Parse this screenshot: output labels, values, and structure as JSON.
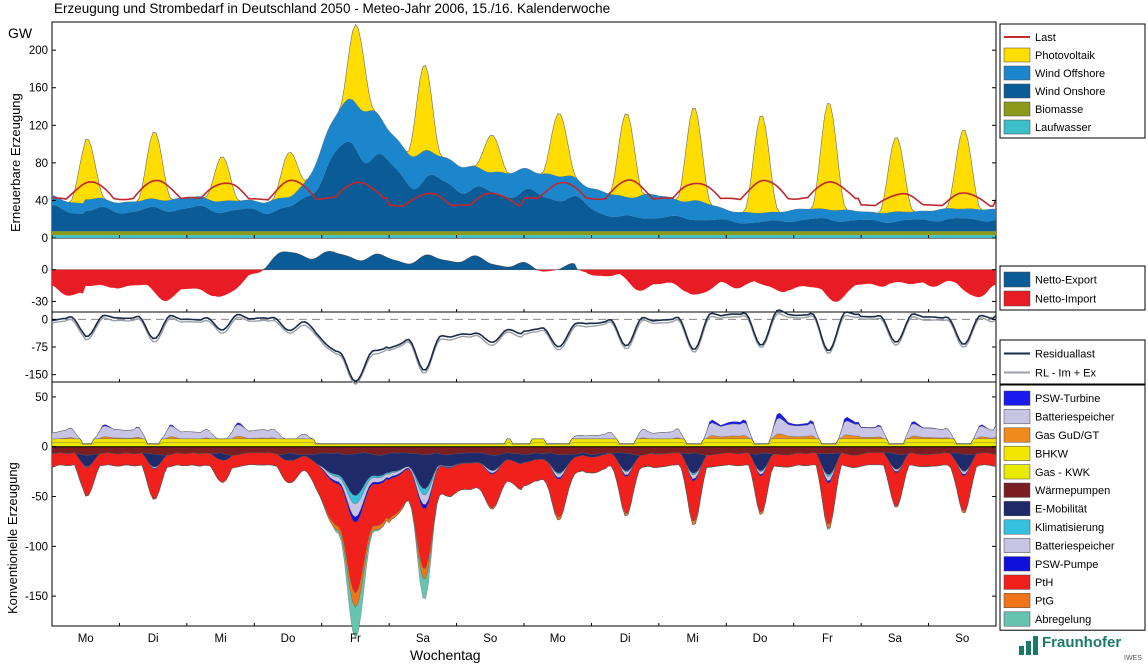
{
  "chart_data": {
    "type": "area",
    "title": "Erzeugung und Strombedarf in Deutschland 2050 - Meteo-Jahr 2006, 15./16. Kalenderwoche",
    "xlabel": "Wochentag",
    "x_ticks": [
      "Mo",
      "Di",
      "Mi",
      "Do",
      "Fr",
      "Sa",
      "So",
      "Mo",
      "Di",
      "Mi",
      "Do",
      "Fr",
      "Sa",
      "So"
    ],
    "x_unit": "hours",
    "x_range": [
      0,
      336
    ],
    "panels": [
      {
        "id": "erneuerbare",
        "ylabel": "Erneuerbare Erzeugung",
        "unit": "GW",
        "ylim": [
          0,
          230
        ],
        "yticks": [
          0,
          40,
          80,
          120,
          160,
          200
        ],
        "stacked": true,
        "legend": [
          {
            "name": "Last",
            "color": "#c0282d",
            "kind": "line"
          },
          {
            "name": "Photovoltaik",
            "color": "#ffdd00",
            "kind": "area"
          },
          {
            "name": "Wind Offshore",
            "color": "#1c86cc",
            "kind": "area"
          },
          {
            "name": "Wind Onshore",
            "color": "#0b5b96",
            "kind": "area"
          },
          {
            "name": "Biomasse",
            "color": "#8c9a1c",
            "kind": "area"
          },
          {
            "name": "Laufwasser",
            "color": "#3cbfc8",
            "kind": "area"
          }
        ],
        "daily": {
          "onshore": [
            25,
            22,
            23,
            25,
            85,
            58,
            38,
            40,
            14,
            14,
            10,
            12,
            12,
            12
          ],
          "offshore": [
            12,
            10,
            10,
            12,
            45,
            32,
            20,
            25,
            22,
            18,
            10,
            10,
            10,
            10
          ],
          "pv_peak": [
            65,
            72,
            48,
            48,
            85,
            92,
            40,
            68,
            90,
            100,
            105,
            115,
            80,
            85
          ]
        },
        "biomasse_gw": 4,
        "laufwasser_gw": 3,
        "last": {
          "base_weekday": 42,
          "base_weekend": 35,
          "amp_weekday": 18,
          "amp_weekend": 12
        }
      },
      {
        "id": "netto",
        "unit": "GW",
        "ylim": [
          -40,
          30
        ],
        "yticks": [
          -30,
          0
        ],
        "legend": [
          {
            "name": "Netto-Export",
            "color": "#0b5b96"
          },
          {
            "name": "Netto-Import",
            "color": "#e81c24"
          }
        ],
        "daily_base": [
          -12,
          -20,
          -18,
          12,
          15,
          8,
          8,
          2,
          -10,
          -15,
          -15,
          -18,
          -12,
          -15
        ]
      },
      {
        "id": "residual",
        "unit": "GW",
        "ylim": [
          -170,
          20
        ],
        "yticks": [
          -150,
          -75,
          0
        ],
        "legend": [
          {
            "name": "Residuallast",
            "color": "#1a2b4a"
          },
          {
            "name": "RL - Im + Ex",
            "color": "#9aa0a8"
          }
        ]
      },
      {
        "id": "konventionelle",
        "ylabel": "Konventionelle Erzeugung",
        "unit": "GW",
        "ylim": [
          -180,
          65
        ],
        "yticks": [
          -150,
          -100,
          -50,
          0,
          50
        ],
        "legend": [
          {
            "name": "PSW-Turbine",
            "color": "#1a1aee"
          },
          {
            "name": "Batteriespeicher",
            "color": "#c8c4e6"
          },
          {
            "name": "Gas GuD/GT",
            "color": "#f08a1c"
          },
          {
            "name": "BHKW",
            "color": "#f2e600"
          },
          {
            "name": "Gas - KWK",
            "color": "#eaea00"
          },
          {
            "name": "Wärmepumpen",
            "color": "#7a1e22"
          },
          {
            "name": "E-Mobilität",
            "color": "#1f2a6b"
          },
          {
            "name": "Klimatisierung",
            "color": "#35c0e0"
          },
          {
            "name": "Batteriespeicher",
            "color": "#c8c4e6"
          },
          {
            "name": "PSW-Pumpe",
            "color": "#1010dd"
          },
          {
            "name": "PtH",
            "color": "#f0201c"
          },
          {
            "name": "PtG",
            "color": "#f07418"
          },
          {
            "name": "Abregelung",
            "color": "#66c4b0"
          }
        ]
      }
    ]
  },
  "logo": {
    "name": "Fraunhofer",
    "sub": "IWES"
  }
}
